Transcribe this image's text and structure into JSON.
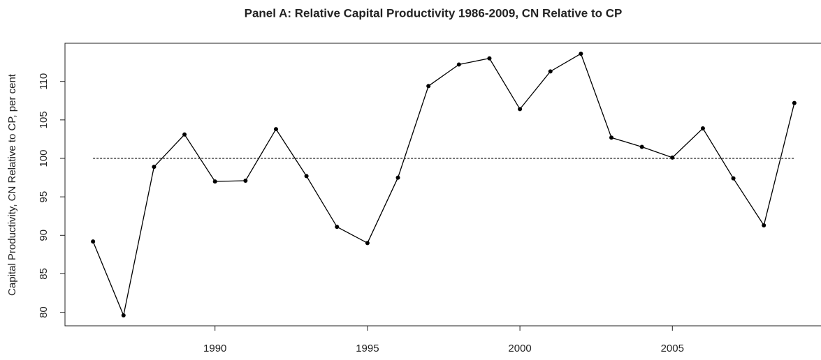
{
  "chart_data": {
    "type": "line",
    "title": "Panel A: Relative Capital Productivity 1986-2009, CN Relative to CP",
    "y_label": "Capital Productivity, CN Relative to CP, per cent",
    "x": [
      1986,
      1987,
      1988,
      1989,
      1990,
      1991,
      1992,
      1993,
      1994,
      1995,
      1996,
      1997,
      1998,
      1999,
      2000,
      2001,
      2002,
      2003,
      2004,
      2005,
      2006,
      2007,
      2008,
      2009
    ],
    "series": [
      {
        "name": "CN relative to CP",
        "color": "#000000",
        "values": [
          89.2,
          79.6,
          98.9,
          103.1,
          97.0,
          97.1,
          103.8,
          97.7,
          91.1,
          89.0,
          97.5,
          109.4,
          112.2,
          113.0,
          106.4,
          111.3,
          113.6,
          102.7,
          101.5,
          100.1,
          103.9,
          97.4,
          91.3,
          107.2
        ]
      }
    ],
    "reference_line": 100,
    "xlim": [
      1985.08,
      2009.92
    ],
    "xticks": [
      1990,
      1995,
      2000,
      2005
    ],
    "ylim": [
      78.24,
      114.96
    ],
    "yticks": [
      80,
      85,
      90,
      95,
      100,
      105,
      110
    ],
    "grid": false
  }
}
